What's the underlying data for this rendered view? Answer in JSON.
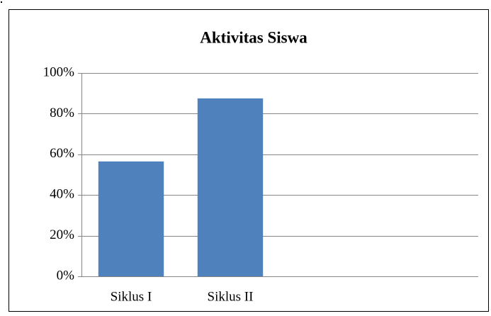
{
  "chart_data": {
    "type": "bar",
    "title": "Aktivitas Siswa",
    "categories": [
      "Siklus I",
      "Siklus II",
      null,
      null
    ],
    "values": [
      56.5,
      87.5,
      null,
      null
    ],
    "color": "#4f81bd",
    "ylim": [
      0,
      100
    ],
    "yticks": [
      {
        "value": 0,
        "label": "0%"
      },
      {
        "value": 20,
        "label": "20%"
      },
      {
        "value": 40,
        "label": "40%"
      },
      {
        "value": 60,
        "label": "60%"
      },
      {
        "value": 80,
        "label": "80%"
      },
      {
        "value": 100,
        "label": "100%"
      }
    ],
    "grid": true
  }
}
